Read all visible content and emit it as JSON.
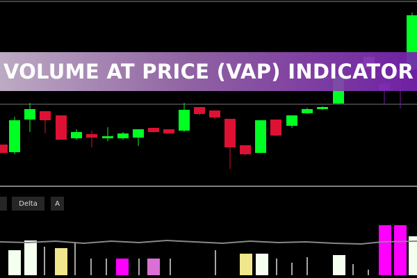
{
  "banner": {
    "title": "VOLUME AT PRICE (VAP) INDICATOR"
  },
  "toolbar": {
    "buttons": [
      "Delta",
      "A"
    ]
  }
}
